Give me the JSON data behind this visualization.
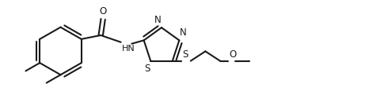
{
  "bg_color": "#ffffff",
  "line_color": "#1a1a1a",
  "line_width": 1.5,
  "fig_width": 4.66,
  "fig_height": 1.3,
  "dpi": 100,
  "xlim": [
    0,
    9.5
  ],
  "ylim": [
    0.0,
    2.6
  ]
}
